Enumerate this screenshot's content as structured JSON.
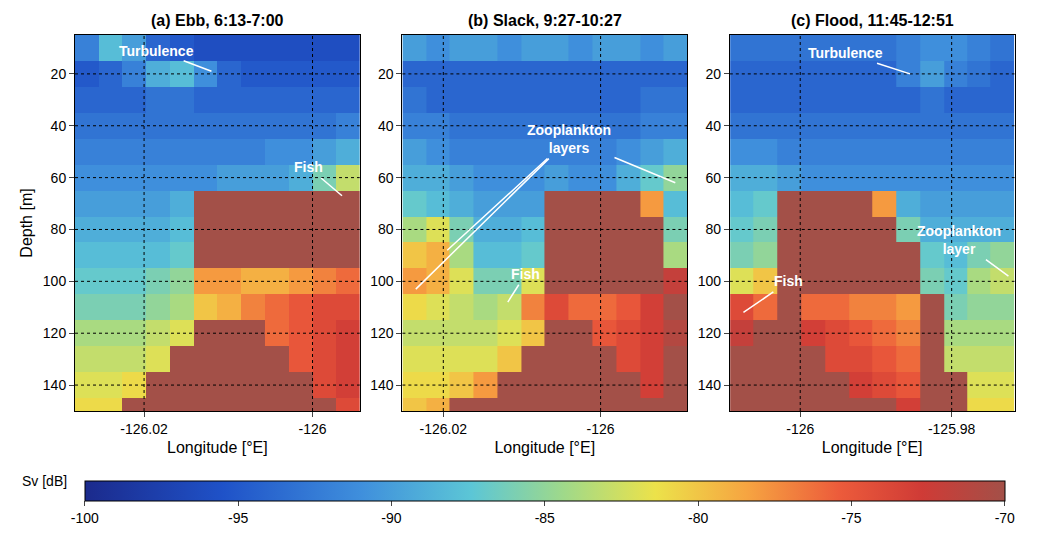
{
  "chart_data": [
    {
      "type": "heatmap",
      "title": "(a) Ebb, 6:13-7:00",
      "x_label": "Longitude [°E]",
      "y_label": "Depth [m]",
      "x": [
        -126.0268,
        -126.024,
        -126.0212,
        -126.0183,
        -126.0155,
        -126.0127,
        -126.0099,
        -126.0071,
        -126.0042,
        -126.0014,
        -125.9986,
        -125.9958
      ],
      "y": [
        10,
        20,
        30,
        40,
        50,
        60,
        70,
        80,
        90,
        100,
        110,
        120,
        130,
        140,
        150
      ],
      "z": [
        [
          -92,
          -88,
          -90,
          -94,
          -95,
          -96,
          -96,
          -96,
          -96,
          -96,
          -96,
          -96
        ],
        [
          -95,
          -94,
          -92,
          -89,
          -88,
          -91,
          -94,
          -95,
          -95,
          -95,
          -95,
          -95
        ],
        [
          -94,
          -94,
          -94,
          -93,
          -93,
          -94,
          -94,
          -94,
          -94,
          -94,
          -94,
          -94
        ],
        [
          -93,
          -93,
          -93,
          -93,
          -93,
          -93,
          -93,
          -93,
          -93,
          -93,
          -93,
          -92
        ],
        [
          -92,
          -92,
          -92,
          -92,
          -92,
          -92,
          -92,
          -92,
          -91,
          -91,
          -90,
          -89
        ],
        [
          -91,
          -91,
          -91,
          -91,
          -91,
          -91,
          -90,
          -90,
          -90,
          -89,
          -86,
          -83
        ],
        [
          -90,
          -90,
          -90,
          -90,
          -89,
          -70,
          -70,
          -70,
          -70,
          -70,
          -70,
          -70
        ],
        [
          -89,
          -89,
          -89,
          -89,
          -88,
          -70,
          -70,
          -70,
          -70,
          -70,
          -70,
          -70
        ],
        [
          -88,
          -88,
          -88,
          -88,
          -87,
          -70,
          -70,
          -70,
          -70,
          -70,
          -70,
          -70
        ],
        [
          -87,
          -87,
          -87,
          -86,
          -85,
          -78,
          -78,
          -79,
          -79,
          -78,
          -77,
          -76
        ],
        [
          -86,
          -86,
          -86,
          -85,
          -84,
          -80,
          -79,
          -77,
          -76,
          -75,
          -74,
          -74
        ],
        [
          -84,
          -84,
          -84,
          -83,
          -82,
          -70,
          -70,
          -70,
          -76,
          -75,
          -74,
          -73
        ],
        [
          -83,
          -83,
          -83,
          -82,
          -70,
          -70,
          -70,
          -70,
          -70,
          -75,
          -74,
          -73
        ],
        [
          -82,
          -82,
          -81,
          -70,
          -70,
          -70,
          -70,
          -70,
          -70,
          -70,
          -74,
          -73
        ],
        [
          -81,
          -81,
          -70,
          -70,
          -70,
          -70,
          -70,
          -70,
          -70,
          -70,
          -70,
          -74
        ]
      ],
      "xlim": [
        -126.0282,
        -125.9944
      ],
      "xticks": [
        -126.02,
        -126
      ],
      "ylim": [
        150,
        5
      ],
      "yticks": [
        20,
        40,
        60,
        80,
        100,
        120,
        140
      ],
      "grid": true,
      "colorbar": {
        "title": "Sv [dB]",
        "range": [
          -100,
          -70
        ],
        "ticks": [
          -100,
          -95,
          -90,
          -85,
          -80,
          -75,
          -70
        ]
      },
      "annotations": [
        {
          "text": "Turbulence",
          "x": -126.0185,
          "y": 11,
          "targets": [
            [
              -126.012,
              19
            ]
          ]
        },
        {
          "text": "Fish",
          "x": -126.0005,
          "y": 56,
          "targets": [
            [
              -125.9965,
              67
            ]
          ]
        }
      ]
    },
    {
      "type": "heatmap",
      "title": "(b) Slack, 9:27-10:27",
      "x_label": "Longitude [°E]",
      "x": [
        -126.0237,
        -126.0207,
        -126.0177,
        -126.0146,
        -126.0116,
        -126.0086,
        -126.0056,
        -126.0026,
        -125.9996,
        -125.9965,
        -125.9935,
        -125.9905
      ],
      "y": [
        10,
        20,
        30,
        40,
        50,
        60,
        70,
        80,
        90,
        100,
        110,
        120,
        130,
        140,
        150
      ],
      "z": [
        [
          -90,
          -91,
          -90,
          -90,
          -91,
          -90,
          -90,
          -91,
          -90,
          -90,
          -91,
          -90
        ],
        [
          -94,
          -94,
          -94,
          -94,
          -94,
          -94,
          -94,
          -94,
          -94,
          -94,
          -94,
          -94
        ],
        [
          -93,
          -94,
          -94,
          -94,
          -94,
          -94,
          -94,
          -94,
          -94,
          -94,
          -93,
          -93
        ],
        [
          -92,
          -92,
          -93,
          -93,
          -93,
          -93,
          -93,
          -93,
          -93,
          -93,
          -92,
          -92
        ],
        [
          -90,
          -91,
          -92,
          -92,
          -92,
          -92,
          -92,
          -92,
          -92,
          -91,
          -90,
          -89
        ],
        [
          -89,
          -89,
          -90,
          -91,
          -91,
          -91,
          -90,
          -91,
          -91,
          -89,
          -87,
          -85
        ],
        [
          -87,
          -88,
          -89,
          -90,
          -90,
          -90,
          -70,
          -70,
          -70,
          -70,
          -78,
          -88
        ],
        [
          -84,
          -82,
          -86,
          -89,
          -89,
          -88,
          -70,
          -70,
          -70,
          -70,
          -70,
          -86
        ],
        [
          -80,
          -79,
          -84,
          -88,
          -88,
          -87,
          -70,
          -70,
          -70,
          -70,
          -70,
          -84
        ],
        [
          -78,
          -79,
          -82,
          -86,
          -86,
          -82,
          -70,
          -70,
          -70,
          -70,
          -70,
          -72
        ],
        [
          -81,
          -82,
          -83,
          -84,
          -83,
          -77,
          -74,
          -76,
          -76,
          -75,
          -73,
          -70
        ],
        [
          -83,
          -83,
          -83,
          -83,
          -82,
          -80,
          -70,
          -70,
          -75,
          -74,
          -73,
          -71
        ],
        [
          -82,
          -82,
          -82,
          -82,
          -80,
          -70,
          -70,
          -70,
          -70,
          -74,
          -73,
          -70
        ],
        [
          -81,
          -81,
          -80,
          -78,
          -70,
          -70,
          -70,
          -70,
          -70,
          -70,
          -73,
          -70
        ],
        [
          -80,
          -79,
          -70,
          -70,
          -70,
          -70,
          -70,
          -70,
          -70,
          -70,
          -70,
          -70
        ]
      ],
      "xlim": [
        -126.0252,
        -125.989
      ],
      "xticks": [
        -126.02,
        -126
      ],
      "ylim": [
        150,
        5
      ],
      "yticks": [
        20,
        40,
        60,
        80,
        100,
        120,
        140
      ],
      "grid": true,
      "colorbar": {
        "title": "Sv [dB]",
        "range": [
          -100,
          -70
        ],
        "ticks": [
          -100,
          -95,
          -90,
          -85,
          -80,
          -75,
          -70
        ]
      },
      "annotations": [
        {
          "text": "Zooplankton layers",
          "x": -126.004,
          "y": 45,
          "targets": [
            [
              -126.0235,
              103
            ],
            [
              -126.0195,
              88
            ],
            [
              -125.9905,
              62
            ]
          ]
        },
        {
          "text": "Fish",
          "x": -126.0095,
          "y": 97,
          "targets": [
            [
              -126.0118,
              108
            ]
          ]
        }
      ]
    },
    {
      "type": "heatmap",
      "title": "(c) Flood, 11:45-12:51",
      "x_label": "Longitude [°E]",
      "x": [
        -126.0077,
        -126.0046,
        -126.0014,
        -125.9983,
        -125.9952,
        -125.992,
        -125.9889,
        -125.9858,
        -125.9826,
        -125.9795,
        -125.9764,
        -125.9733
      ],
      "y": [
        10,
        20,
        30,
        40,
        50,
        60,
        70,
        80,
        90,
        100,
        110,
        120,
        130,
        140,
        150
      ],
      "z": [
        [
          -93,
          -93,
          -93,
          -93,
          -93,
          -93,
          -93,
          -92,
          -91,
          -91,
          -92,
          -93
        ],
        [
          -94,
          -94,
          -94,
          -94,
          -94,
          -94,
          -94,
          -92,
          -90,
          -92,
          -93,
          -94
        ],
        [
          -94,
          -94,
          -94,
          -94,
          -94,
          -94,
          -94,
          -94,
          -93,
          -94,
          -94,
          -94
        ],
        [
          -93,
          -93,
          -93,
          -93,
          -93,
          -93,
          -93,
          -93,
          -93,
          -93,
          -93,
          -93
        ],
        [
          -91,
          -91,
          -92,
          -92,
          -92,
          -92,
          -92,
          -92,
          -92,
          -92,
          -92,
          -92
        ],
        [
          -89,
          -89,
          -90,
          -91,
          -91,
          -91,
          -91,
          -91,
          -91,
          -91,
          -91,
          -91
        ],
        [
          -88,
          -87,
          -70,
          -70,
          -70,
          -70,
          -78,
          -89,
          -90,
          -90,
          -90,
          -90
        ],
        [
          -87,
          -86,
          -70,
          -70,
          -70,
          -70,
          -70,
          -86,
          -89,
          -89,
          -89,
          -89
        ],
        [
          -86,
          -85,
          -70,
          -70,
          -70,
          -70,
          -70,
          -70,
          -87,
          -88,
          -86,
          -85
        ],
        [
          -82,
          -80,
          -70,
          -70,
          -70,
          -70,
          -70,
          -70,
          -86,
          -87,
          -84,
          -83
        ],
        [
          -74,
          -76,
          -70,
          -76,
          -76,
          -77,
          -77,
          -78,
          -70,
          -86,
          -85,
          -85
        ],
        [
          -72,
          -70,
          -70,
          -73,
          -74,
          -75,
          -76,
          -77,
          -70,
          -84,
          -84,
          -84
        ],
        [
          -70,
          -70,
          -70,
          -70,
          -74,
          -74,
          -75,
          -76,
          -70,
          -83,
          -83,
          -83
        ],
        [
          -70,
          -70,
          -70,
          -70,
          -70,
          -73,
          -74,
          -75,
          -70,
          -70,
          -82,
          -82
        ],
        [
          -70,
          -70,
          -70,
          -70,
          -70,
          -70,
          -70,
          -73,
          -70,
          -70,
          -81,
          -81
        ]
      ],
      "xlim": [
        -126.0093,
        -125.9717
      ],
      "xticks": [
        -126,
        -125.98
      ],
      "ylim": [
        150,
        5
      ],
      "yticks": [
        20,
        40,
        60,
        80,
        100,
        120,
        140
      ],
      "grid": true,
      "colorbar": {
        "title": "Sv [dB]",
        "range": [
          -100,
          -70
        ],
        "ticks": [
          -100,
          -95,
          -90,
          -85,
          -80,
          -75,
          -70
        ]
      },
      "annotations": [
        {
          "text": "Turbulence",
          "x": -125.994,
          "y": 12,
          "targets": [
            [
              -125.9855,
              20
            ]
          ]
        },
        {
          "text": "Zooplankton layer",
          "x": -125.979,
          "y": 84,
          "targets": [
            [
              -125.9725,
              98
            ]
          ]
        },
        {
          "text": "Fish",
          "x": -126.0015,
          "y": 100,
          "targets": [
            [
              -126.0075,
              112
            ]
          ]
        }
      ]
    }
  ]
}
